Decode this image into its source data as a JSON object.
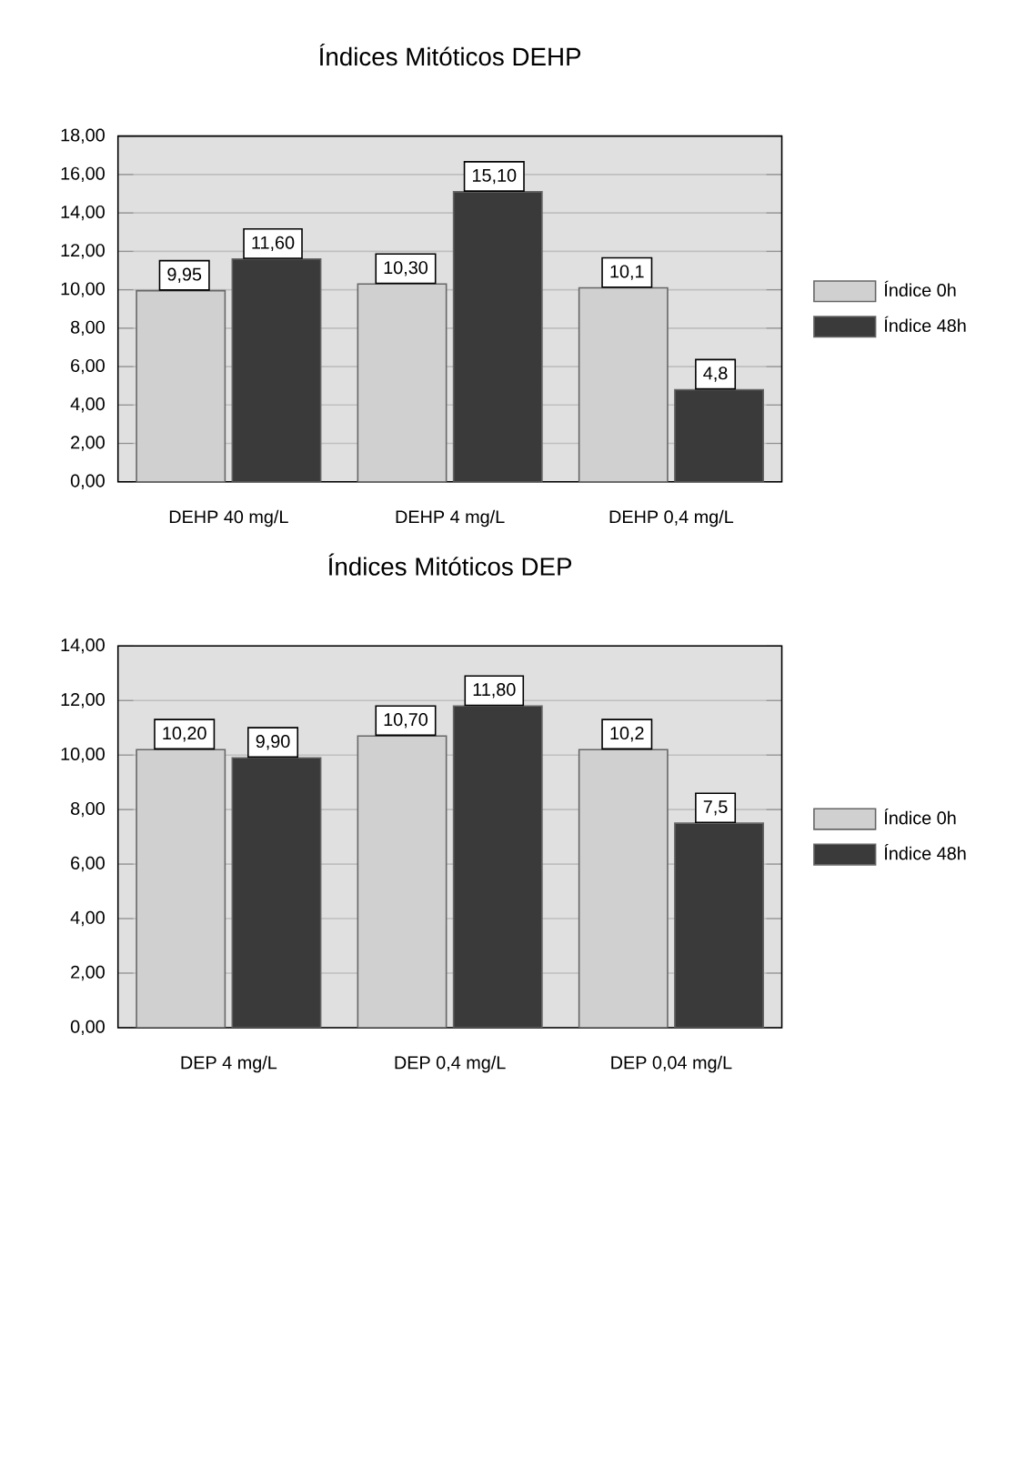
{
  "chart_data": [
    {
      "type": "bar",
      "title": "Índices Mitóticos DEHP",
      "categories": [
        "DEHP 40 mg/L",
        "DEHP 4 mg/L",
        "DEHP 0,4 mg/L"
      ],
      "series": [
        {
          "name": "Índice 0h",
          "color": "#d0d0d0",
          "values": [
            9.95,
            10.3,
            10.1
          ],
          "value_labels": [
            "9,95",
            "10,30",
            "10,1"
          ]
        },
        {
          "name": "Índice 48h",
          "color": "#3a3a3a",
          "values": [
            11.6,
            15.1,
            4.8
          ],
          "value_labels": [
            "11,60",
            "15,10",
            "4,8"
          ]
        }
      ],
      "ylim": [
        0,
        18
      ],
      "yticks": [
        {
          "value": 0,
          "label": "0,00"
        },
        {
          "value": 2,
          "label": "2,00"
        },
        {
          "value": 4,
          "label": "4,00"
        },
        {
          "value": 6,
          "label": "6,00"
        },
        {
          "value": 8,
          "label": "8,00"
        },
        {
          "value": 10,
          "label": "10,00"
        },
        {
          "value": 12,
          "label": "12,00"
        },
        {
          "value": 14,
          "label": "14,00"
        },
        {
          "value": 16,
          "label": "16,00"
        },
        {
          "value": 18,
          "label": "18,00"
        }
      ],
      "grid": "y",
      "legend": "right"
    },
    {
      "type": "bar",
      "title": "Índices Mitóticos DEP",
      "categories": [
        "DEP 4 mg/L",
        "DEP 0,4 mg/L",
        "DEP 0,04 mg/L"
      ],
      "series": [
        {
          "name": "Índice 0h",
          "color": "#d0d0d0",
          "values": [
            10.2,
            10.7,
            10.2
          ],
          "value_labels": [
            "10,20",
            "10,70",
            "10,2"
          ]
        },
        {
          "name": "Índice 48h",
          "color": "#3a3a3a",
          "values": [
            9.9,
            11.8,
            7.5
          ],
          "value_labels": [
            "9,90",
            "11,80",
            "7,5"
          ]
        }
      ],
      "ylim": [
        0,
        14
      ],
      "yticks": [
        {
          "value": 0,
          "label": "0,00"
        },
        {
          "value": 2,
          "label": "2,00"
        },
        {
          "value": 4,
          "label": "4,00"
        },
        {
          "value": 6,
          "label": "6,00"
        },
        {
          "value": 8,
          "label": "8,00"
        },
        {
          "value": 10,
          "label": "10,00"
        },
        {
          "value": 12,
          "label": "12,00"
        },
        {
          "value": 14,
          "label": "14,00"
        }
      ],
      "grid": "y",
      "legend": "right"
    }
  ]
}
